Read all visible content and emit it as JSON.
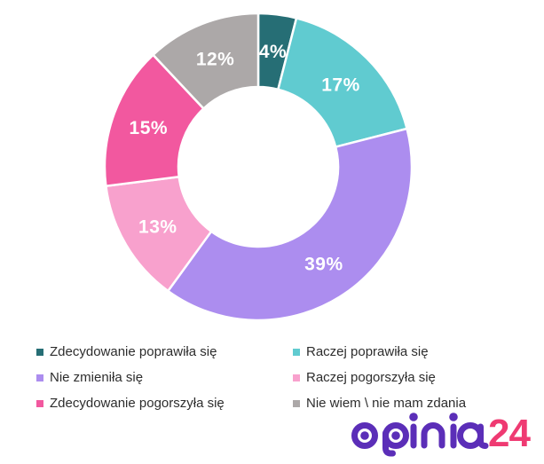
{
  "chart_data": {
    "type": "donut",
    "title": "",
    "unit": "%",
    "start_angle_deg": 0,
    "direction": "clockwise",
    "inner_radius_ratio": 0.52,
    "grid": false,
    "legend_position": "bottom",
    "data_label_color": "#ffffff",
    "slices": [
      {
        "label": "Zdecydowanie poprawiła się",
        "value": 4,
        "display": "4%",
        "color": "#266E75"
      },
      {
        "label": "Raczej poprawiła się",
        "value": 17,
        "display": "17%",
        "color": "#60CBD0"
      },
      {
        "label": "Nie zmieniła się",
        "value": 39,
        "display": "39%",
        "color": "#AC8DEF"
      },
      {
        "label": "Raczej pogorszyła się",
        "value": 13,
        "display": "13%",
        "color": "#F8A1CD"
      },
      {
        "label": "Zdecydowanie pogorszyła się",
        "value": 15,
        "display": "15%",
        "color": "#F2589F"
      },
      {
        "label": "Nie wiem \\ nie mam zdania",
        "value": 12,
        "display": "12%",
        "color": "#ACA8A8"
      }
    ]
  },
  "legend": {
    "items": [
      {
        "label": "Zdecydowanie poprawiła się",
        "color": "#266E75"
      },
      {
        "label": "Raczej poprawiła się",
        "color": "#60CBD0"
      },
      {
        "label": "Nie zmieniła się",
        "color": "#AC8DEF"
      },
      {
        "label": "Raczej pogorszyła się",
        "color": "#F8A1CD"
      },
      {
        "label": "Zdecydowanie pogorszyła się",
        "color": "#F2589F"
      },
      {
        "label": "Nie wiem \\ nie mam zdania",
        "color": "#ACA8A8"
      }
    ]
  },
  "logo": {
    "name": "opinia24",
    "text_main": "opinia",
    "text_suffix": "24",
    "color_main": "#5B2EB8",
    "color_suffix": "#EF3A72"
  }
}
